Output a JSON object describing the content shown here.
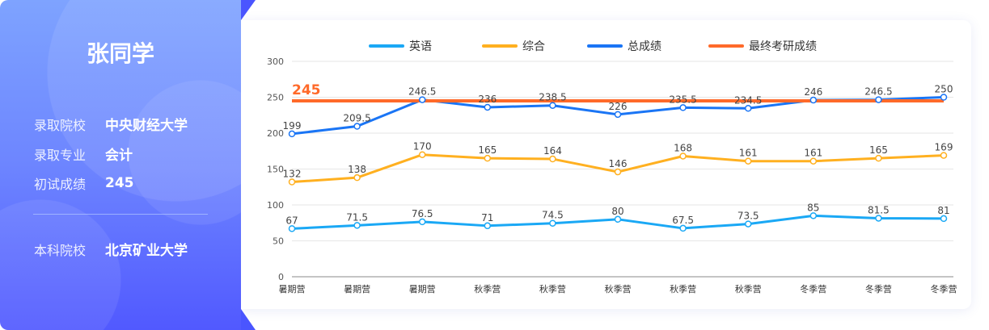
{
  "student": {
    "name": "张同学",
    "admitted_school_label": "录取院校",
    "admitted_school": "中央财经大学",
    "major_label": "录取专业",
    "major": "会计",
    "initial_score_label": "初试成绩",
    "initial_score": "245",
    "undergrad_label": "本科院校",
    "undergrad": "北京矿业大学"
  },
  "chart_data": {
    "type": "line",
    "categories": [
      "暑期营",
      "暑期营",
      "暑期营",
      "秋季营",
      "秋季营",
      "秋季营",
      "秋季营",
      "秋季营",
      "冬季营",
      "冬季营",
      "冬季营"
    ],
    "ylim": [
      0,
      300
    ],
    "yticks": [
      0,
      50,
      100,
      150,
      200,
      250,
      300
    ],
    "grid": true,
    "legend_position": "top",
    "series": [
      {
        "name": "英语",
        "color": "#1aa8f5",
        "values": [
          67,
          71.5,
          76.5,
          71,
          74.5,
          80,
          67.5,
          73.5,
          85,
          81.5,
          81
        ]
      },
      {
        "name": "综合",
        "color": "#ffb020",
        "values": [
          132,
          138,
          170,
          165,
          164,
          146,
          168,
          161,
          161,
          165,
          169
        ]
      },
      {
        "name": "总成绩",
        "color": "#1a75f5",
        "values": [
          199,
          209.5,
          246.5,
          236,
          238.5,
          226,
          235.5,
          234.5,
          246,
          246.5,
          250
        ]
      },
      {
        "name": "最终考研成绩",
        "color": "#ff6a2a",
        "values": [
          245,
          245,
          245,
          245,
          245,
          245,
          245,
          245,
          245,
          245,
          245
        ],
        "annotation": "245"
      }
    ]
  }
}
